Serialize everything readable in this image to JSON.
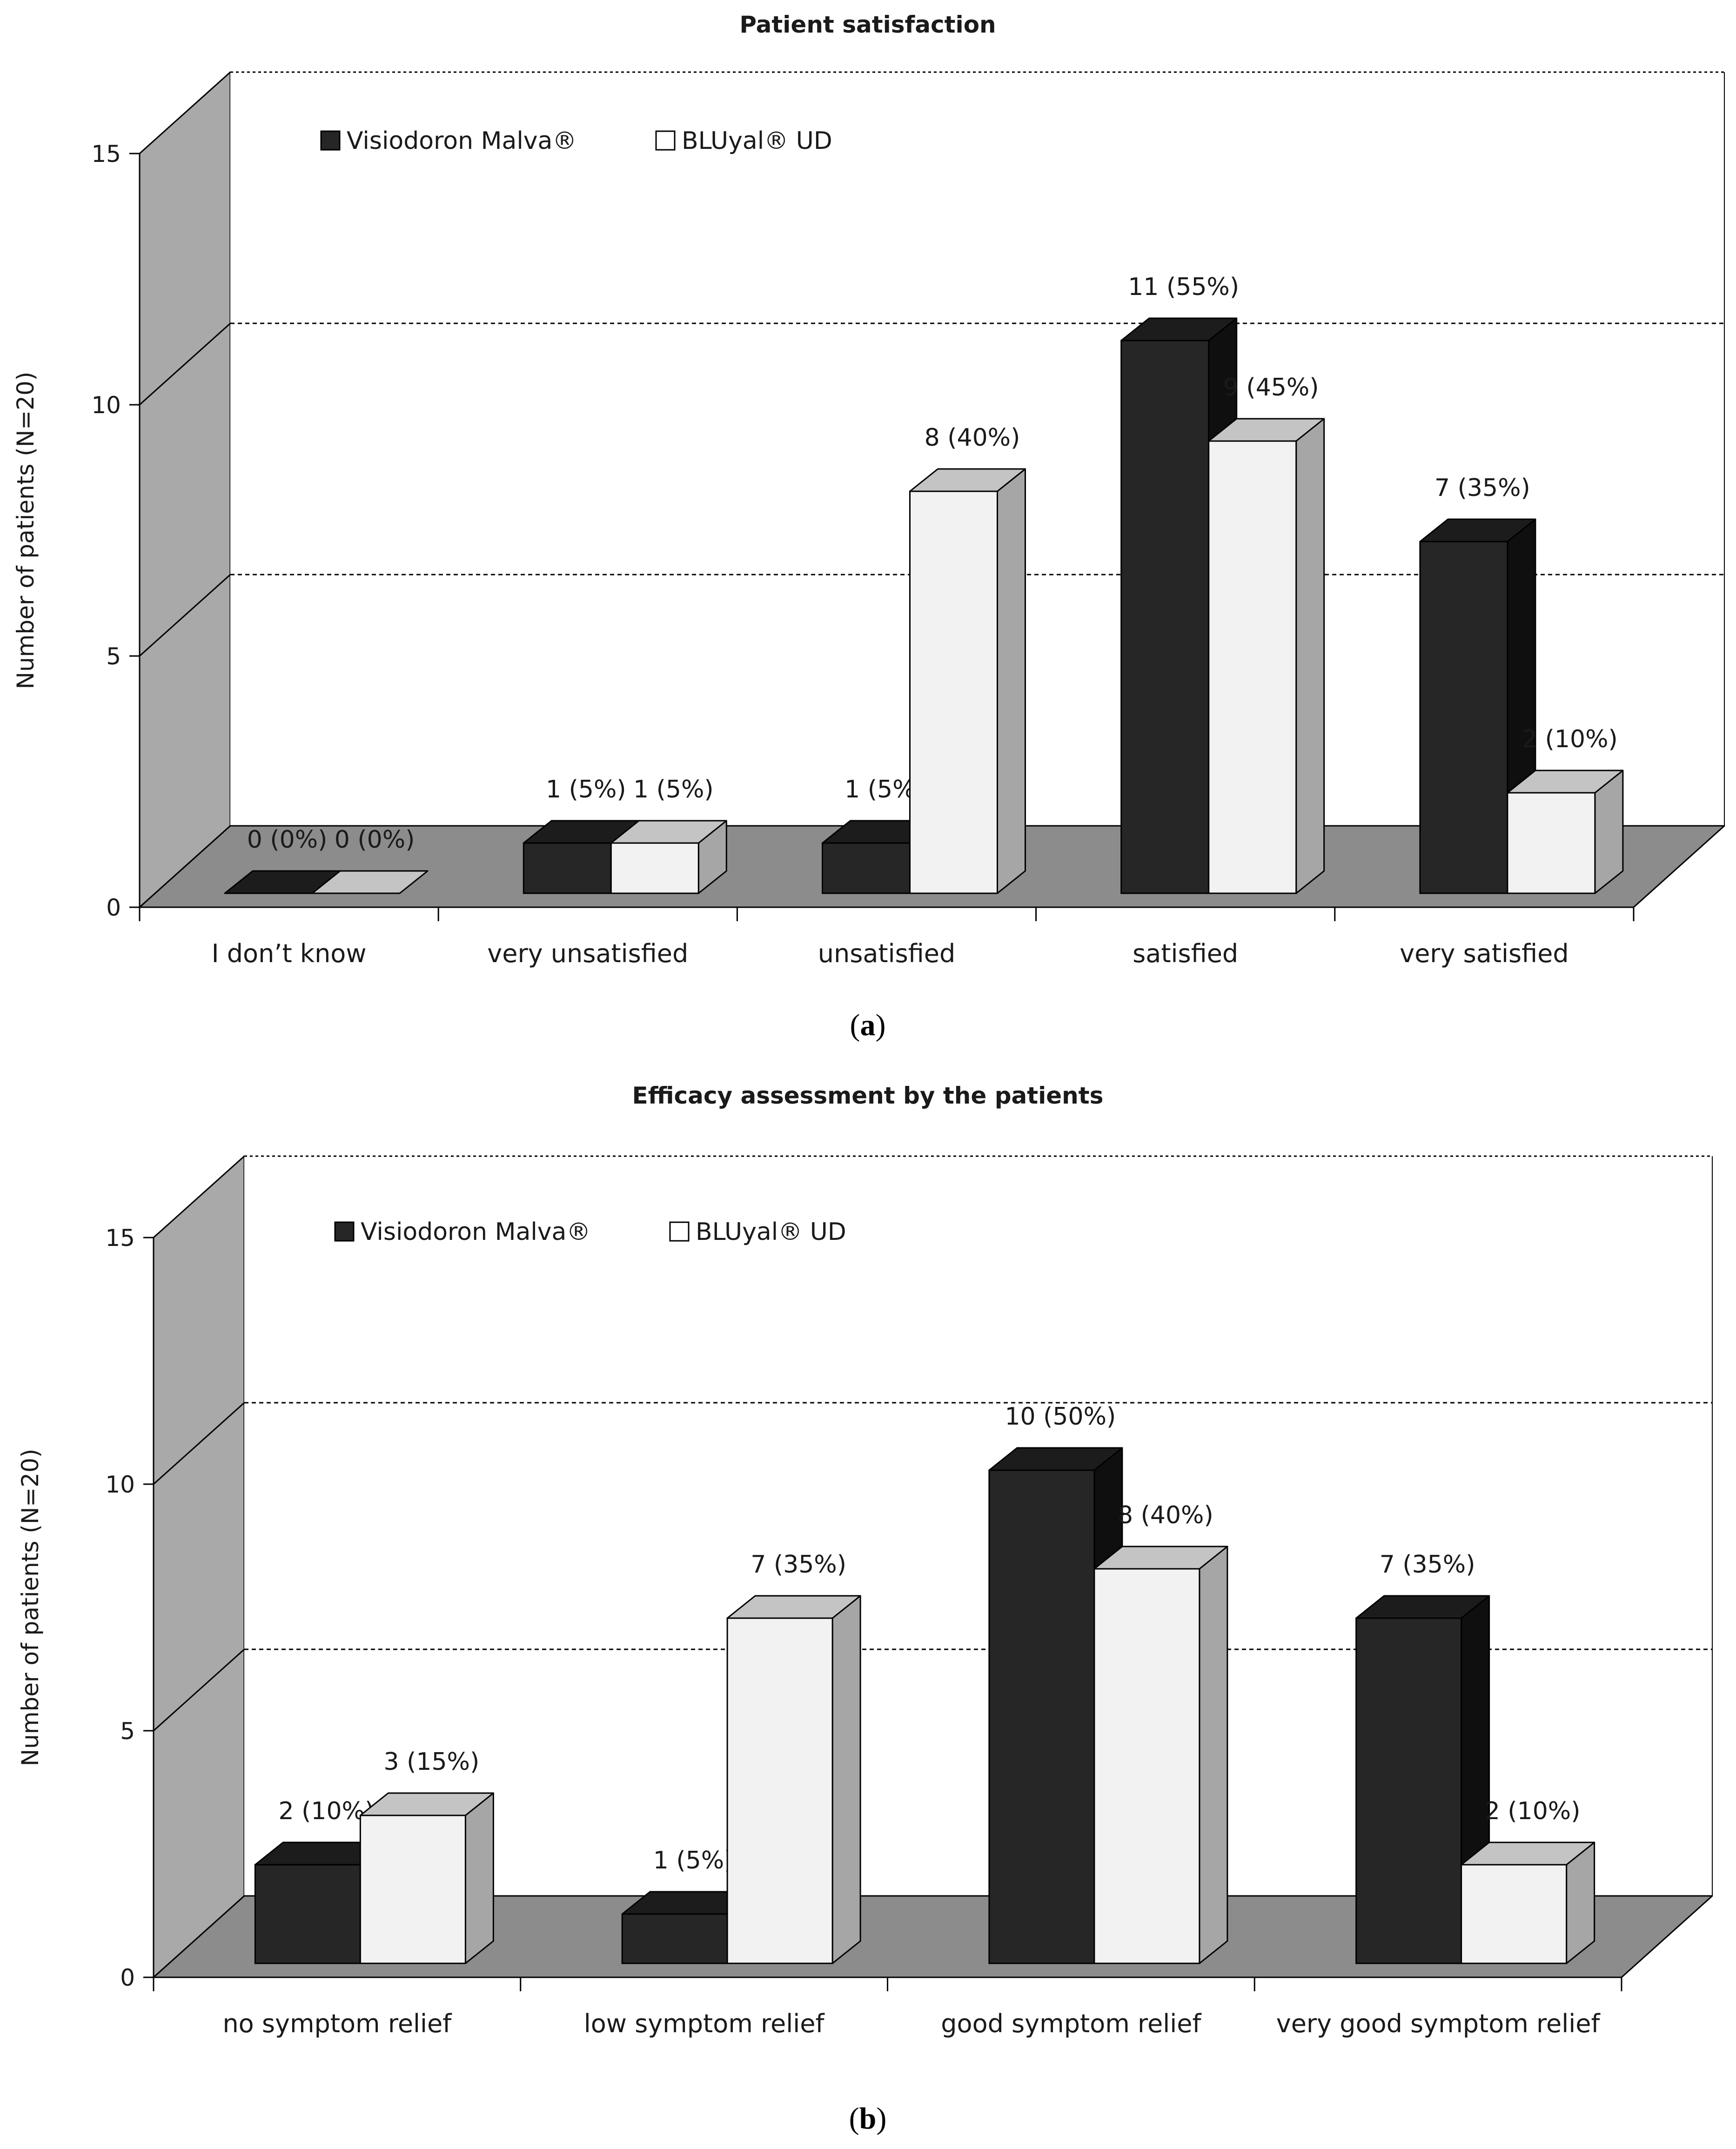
{
  "colors": {
    "visiodoron_front": "#262626",
    "visiodoron_side": "#0f0f0f",
    "visiodoron_top": "#1c1c1c",
    "bluyal_front": "#f2f2f2",
    "bluyal_side": "#a6a6a6",
    "bluyal_top": "#c4c4c4",
    "back_wall": "#ffffff",
    "side_wall": "#a9a9a9",
    "floor": "#8c8c8c",
    "gridline": "#000000"
  },
  "chart_data": [
    {
      "type": "bar",
      "title": "Patient satisfaction",
      "caption_letter": "a",
      "ylabel": "Number of patients (N=20)",
      "ylim": [
        0,
        15
      ],
      "yticks": [
        "0",
        "5",
        "10",
        "15"
      ],
      "grid": "dashed",
      "legend_position": "top-left",
      "categories": [
        "I don’t know",
        "very unsatisfied",
        "unsatisfied",
        "satisfied",
        "very satisfied"
      ],
      "series": [
        {
          "name": "Visiodoron Malva®",
          "values": [
            0,
            1,
            1,
            11,
            7
          ],
          "labels": [
            "0 (0%)",
            "1 (5%)",
            "1 (5%)",
            "11 (55%)",
            "7 (35%)"
          ]
        },
        {
          "name": "BLUyal® UD",
          "values": [
            0,
            1,
            8,
            9,
            2
          ],
          "labels": [
            "0 (0%)",
            "1 (5%)",
            "8 (40%)",
            "9 (45%)",
            "2 (10%)"
          ]
        }
      ]
    },
    {
      "type": "bar",
      "title": "Efficacy assessment by the patients",
      "caption_letter": "b",
      "ylabel": "Number of patients (N=20)",
      "ylim": [
        0,
        15
      ],
      "yticks": [
        "0",
        "5",
        "10",
        "15"
      ],
      "grid": "dashed",
      "legend_position": "top-left",
      "categories": [
        "no symptom relief",
        "low symptom relief",
        "good symptom relief",
        "very good symptom relief"
      ],
      "series": [
        {
          "name": "Visiodoron Malva®",
          "values": [
            2,
            1,
            10,
            7
          ],
          "labels": [
            "2 (10%)",
            "1 (5%)",
            "10 (50%)",
            "7 (35%)"
          ]
        },
        {
          "name": "BLUyal® UD",
          "values": [
            3,
            7,
            8,
            2
          ],
          "labels": [
            "3 (15%)",
            "7 (35%)",
            "8 (40%)",
            "2 (10%)"
          ]
        }
      ]
    }
  ]
}
